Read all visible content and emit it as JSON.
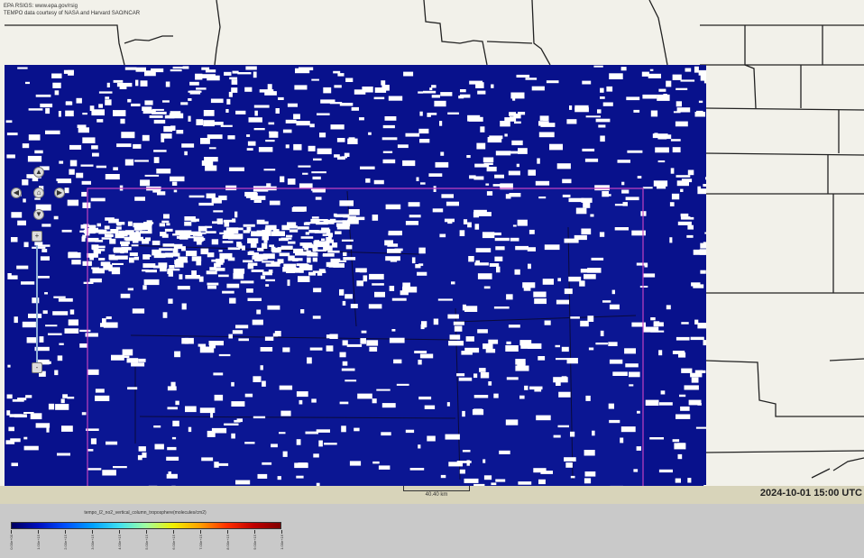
{
  "map": {
    "credit_line1": "EPA RSIGS: www.epa.gov/rsig",
    "credit_line2": "TEMPO data courtesy of NASA and Harvard SAO/NCAR",
    "scale_label": "40.40 km",
    "timestamp": "2024-10-01 15:00 UTC",
    "data_color": "#08118c",
    "overlay_color": "#c040c0",
    "cloud_color": "#ffffff"
  },
  "navigation": {
    "pan_up_icon": "arrow-up-icon",
    "pan_left_icon": "arrow-left-icon",
    "pan_home_icon": "home-icon",
    "pan_right_icon": "arrow-right-icon",
    "pan_down_icon": "arrow-down-icon",
    "zoom_in_label": "+",
    "zoom_out_label": "-"
  },
  "legend": {
    "title": "tempo_l2_no2_vertical_column_troposphere(molecules/cm2)",
    "colors": [
      "#000060",
      "#0010c0",
      "#0050ff",
      "#00a0ff",
      "#40e0f0",
      "#a0ffa0",
      "#f0f000",
      "#ffa000",
      "#ff3000",
      "#c00000",
      "#800000"
    ],
    "tick_labels": [
      "0.00e+00",
      "1.00e+15",
      "2.00e+15",
      "3.00e+15",
      "4.00e+15",
      "5.00e+15",
      "6.00e+15",
      "7.00e+15",
      "8.00e+15",
      "9.00e+15",
      "1.00e+16"
    ]
  }
}
